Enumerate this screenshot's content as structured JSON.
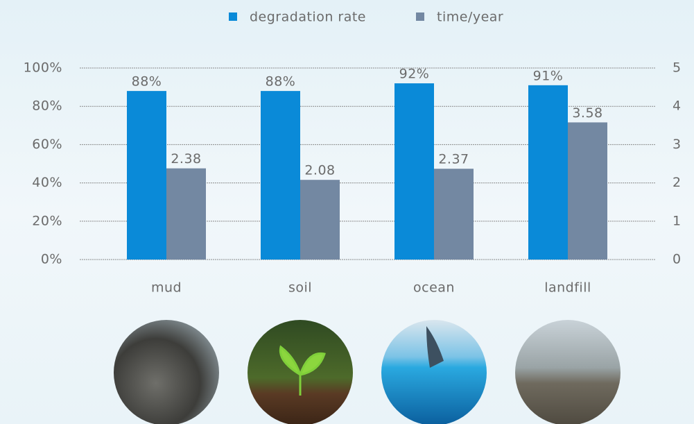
{
  "chart_data": {
    "type": "bar",
    "categories": [
      "mud",
      "soil",
      "ocean",
      "landfill"
    ],
    "series": [
      {
        "name": "degradation rate",
        "color": "#0a8ad8",
        "values": [
          88,
          88,
          92,
          91
        ],
        "value_labels": [
          "88%",
          "88%",
          "92%",
          "91%"
        ]
      },
      {
        "name": "time/year",
        "color": "#7388a2",
        "axis": "y2",
        "values": [
          2.38,
          2.08,
          2.37,
          3.58
        ]
      }
    ],
    "ylim": [
      0,
      100
    ],
    "yticks": [
      {
        "value": 0,
        "label": "0%"
      },
      {
        "value": 20,
        "label": "20%"
      },
      {
        "value": 40,
        "label": "40%"
      },
      {
        "value": 60,
        "label": "60%"
      },
      {
        "value": 80,
        "label": "80%"
      },
      {
        "value": 100,
        "label": "100%"
      }
    ],
    "y2lim": [
      0,
      5
    ],
    "y2ticks": [
      0,
      1,
      2,
      3,
      4,
      5
    ],
    "grid": true,
    "legend": "top"
  }
}
